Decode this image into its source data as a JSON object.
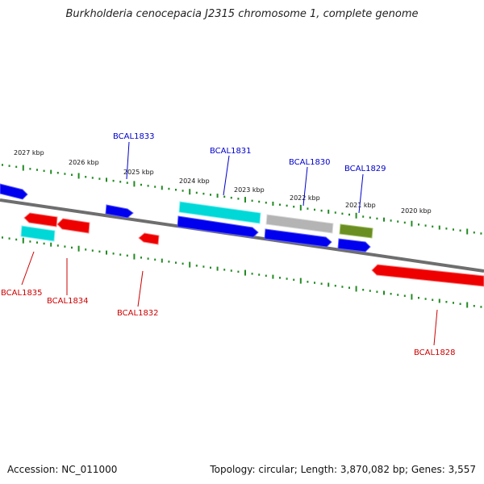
{
  "title": "Burkholderia cenocepacia J2315 chromosome 1, complete genome",
  "accession": "Accession: NC_011000",
  "topology": "Topology: circular; Length: 3,870,082 bp; Genes: 3,557",
  "colors": {
    "backbone": "#808080",
    "ticks": "#228b22",
    "forward_cds": "#0000ee",
    "reverse_cds": "#ee0000",
    "rna": "#00d8d8",
    "gray_feature": "#b4b4b4",
    "olive_feature": "#6b8e23"
  },
  "kbp_labels": [
    "2027 kbp",
    "2026 kbp",
    "2025 kbp",
    "2024 kbp",
    "2023 kbp",
    "2022 kbp",
    "2021 kbp",
    "2020 kbp"
  ],
  "gene_labels": [
    {
      "name": "BCAL1833",
      "strand": "forward"
    },
    {
      "name": "BCAL1831",
      "strand": "forward"
    },
    {
      "name": "BCAL1830",
      "strand": "forward"
    },
    {
      "name": "BCAL1829",
      "strand": "forward"
    },
    {
      "name": "BCAL1835",
      "strand": "reverse"
    },
    {
      "name": "BCAL1834",
      "strand": "reverse"
    },
    {
      "name": "BCAL1832",
      "strand": "reverse"
    },
    {
      "name": "BCAL1828",
      "strand": "reverse"
    }
  ]
}
